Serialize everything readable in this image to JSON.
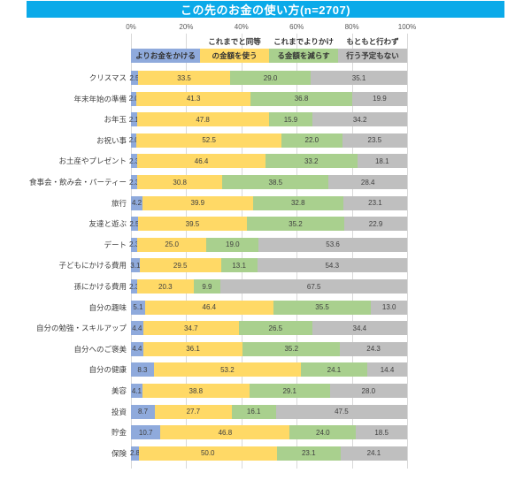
{
  "title": "この先のお金の使い方(n=2707)",
  "colors": {
    "title_bg": "#0BAAE9",
    "grid": "#D9D9D9",
    "blue": "#8FAADC",
    "yellow": "#FFD966",
    "green": "#A9D08E",
    "gray": "#BFBFBF",
    "value_text": "#404040"
  },
  "legend": [
    {
      "top": "",
      "inside": "よりお金をかける",
      "color_key": "blue"
    },
    {
      "top": "これまでと同等",
      "inside": "の金額を使う",
      "color_key": "yellow"
    },
    {
      "top": "これまでよりかけ",
      "inside": "る金額を減らす",
      "color_key": "green"
    },
    {
      "top": "もともと行わず",
      "inside": "行う予定もない",
      "color_key": "gray"
    }
  ],
  "chart_data": {
    "type": "bar",
    "orientation": "horizontal-stacked",
    "title": "この先のお金の使い方(n=2707)",
    "xlim": [
      0,
      100
    ],
    "x_ticks": [
      "0%",
      "20%",
      "40%",
      "60%",
      "80%",
      "100%"
    ],
    "grid": true,
    "legend_position": "top",
    "value_label_format": "one-decimal",
    "categories": [
      "クリスマス",
      "年末年始の準備",
      "お年玉",
      "お祝い事",
      "お土産やプレゼント",
      "食事会・飲み会・パーティー",
      "旅行",
      "友達と遊ぶ",
      "デート",
      "子どもにかける費用",
      "孫にかける費用",
      "自分の趣味",
      "自分の勉強・スキルアップ",
      "自分へのご褒美",
      "自分の健康",
      "美容",
      "投資",
      "貯金",
      "保険"
    ],
    "series": [
      {
        "name": "よりお金をかける",
        "color_key": "blue",
        "values": [
          2.5,
          2.0,
          2.1,
          2.0,
          2.3,
          2.3,
          4.2,
          2.5,
          2.3,
          3.1,
          2.3,
          5.1,
          4.4,
          4.4,
          8.3,
          4.1,
          8.7,
          10.7,
          2.8
        ]
      },
      {
        "name": "これまでと同等の金額を使う",
        "color_key": "yellow",
        "values": [
          33.5,
          41.3,
          47.8,
          52.5,
          46.4,
          30.8,
          39.9,
          39.5,
          25.0,
          29.5,
          20.3,
          46.4,
          34.7,
          36.1,
          53.2,
          38.8,
          27.7,
          46.8,
          50.0
        ]
      },
      {
        "name": "これまでよりかける金額を減らす",
        "color_key": "green",
        "values": [
          29.0,
          36.8,
          15.9,
          22.0,
          33.2,
          38.5,
          32.8,
          35.2,
          19.0,
          13.1,
          9.9,
          35.5,
          26.5,
          35.2,
          24.1,
          29.1,
          16.1,
          24.0,
          23.1
        ]
      },
      {
        "name": "もともと行わず行う予定もない",
        "color_key": "gray",
        "values": [
          35.1,
          19.9,
          34.2,
          23.5,
          18.1,
          28.4,
          23.1,
          22.9,
          53.6,
          54.3,
          67.5,
          13.0,
          34.4,
          24.3,
          14.4,
          28.0,
          47.5,
          18.5,
          24.1
        ]
      }
    ]
  }
}
